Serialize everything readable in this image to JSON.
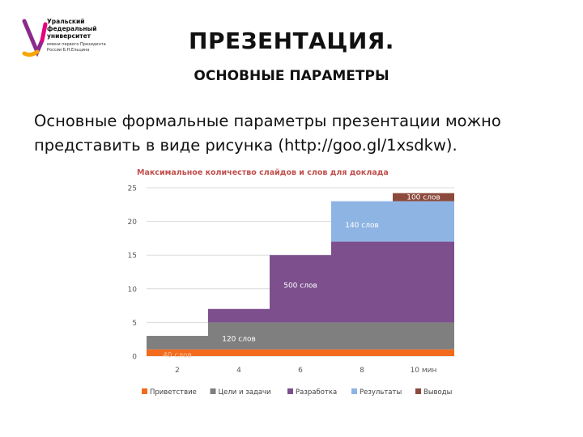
{
  "logo": {
    "lines": [
      "Уральский",
      "федеральный",
      "университет"
    ],
    "sub": "имени первого Президента России Б.Н.Ельцина",
    "brand_colors": [
      "#8a2a8c",
      "#e6007e",
      "#f7a600"
    ]
  },
  "slide": {
    "title": "ПРЕЗЕНТАЦИЯ.",
    "subtitle": "ОСНОВНЫЕ ПАРАМЕТРЫ",
    "text_line1": "Основные формальные параметры презентации можно",
    "text_line2": "представить в виде рисунка (http://goo.gl/1xsdkw)."
  },
  "chart_data": {
    "type": "bar",
    "stacked": true,
    "title": "Максимальное  количество слайдов и слов для доклада",
    "categories": [
      "2",
      "4",
      "6",
      "8",
      "10 мин"
    ],
    "ylim": [
      0,
      25
    ],
    "yticks": [
      0,
      5,
      10,
      15,
      20,
      25
    ],
    "grid": true,
    "legend_position": "bottom",
    "series": [
      {
        "name": "Приветствие",
        "color": "#f26b1d",
        "values": [
          1,
          1,
          1,
          1,
          1
        ]
      },
      {
        "name": "Цели и задачи",
        "color": "#7f7f7f",
        "values": [
          2,
          4,
          4,
          4,
          4
        ]
      },
      {
        "name": "Разработка",
        "color": "#7d4f8d",
        "values": [
          0,
          2,
          10,
          12,
          12
        ]
      },
      {
        "name": "Результаты",
        "color": "#8eb4e3",
        "values": [
          0,
          0,
          0,
          6,
          6
        ]
      },
      {
        "name": "Выводы",
        "color": "#8b4a3c",
        "values": [
          0,
          0,
          0,
          0,
          1.2
        ]
      }
    ],
    "annotations": [
      {
        "text": "40 слов",
        "category": 0,
        "y": 0.2,
        "color": "#f7c29d"
      },
      {
        "text": "120 слов",
        "category": 1,
        "y": 2.6,
        "color": "#ffffff"
      },
      {
        "text": "500 слов",
        "category": 2,
        "y": 10.5,
        "color": "#ffffff"
      },
      {
        "text": "140 слов",
        "category": 3,
        "y": 19.5,
        "color": "#ffffff"
      },
      {
        "text": "100 слов",
        "category": 4,
        "y": 23.6,
        "color": "#ffffff"
      }
    ]
  }
}
